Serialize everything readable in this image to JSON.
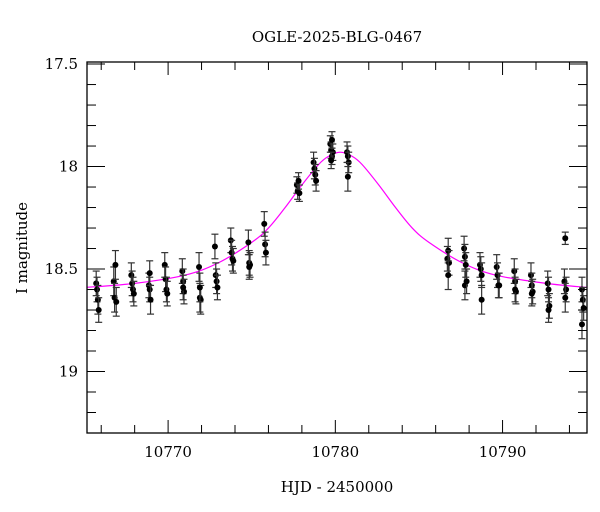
{
  "chart_data": {
    "type": "scatter",
    "title": "OGLE-2025-BLG-0467",
    "xlabel": "HJD - 2450000",
    "ylabel": "I magnitude",
    "xlim": [
      10765.15,
      10795.05
    ],
    "ylim": [
      19.3,
      17.49
    ],
    "y_inverted": true,
    "grid": false,
    "legend": "none",
    "x_major_ticks": [
      10770,
      10780,
      10790
    ],
    "x_tick_labels": [
      "10770",
      "10780",
      "10790"
    ],
    "x_minor_step": 2,
    "y_major_ticks": [
      17.5,
      18,
      18.5,
      19
    ],
    "y_tick_labels": [
      "17.5",
      "18",
      "18.5",
      "19"
    ],
    "y_minor_step": 0.1,
    "colors": {
      "points": "#000000",
      "errorbars": "#333333",
      "model": "#ff00ff",
      "axes": "#000000"
    },
    "series": [
      {
        "kind": "data-with-errors",
        "points": [
          [
            10765.7,
            18.57,
            0.06
          ],
          [
            10765.75,
            18.6,
            0.06
          ],
          [
            10765.8,
            18.65,
            0.07
          ],
          [
            10765.85,
            18.7,
            0.06
          ],
          [
            10766.75,
            18.56,
            0.07
          ],
          [
            10766.8,
            18.64,
            0.07
          ],
          [
            10766.85,
            18.48,
            0.07
          ],
          [
            10766.9,
            18.66,
            0.07
          ],
          [
            10767.8,
            18.53,
            0.06
          ],
          [
            10767.85,
            18.57,
            0.06
          ],
          [
            10767.9,
            18.6,
            0.06
          ],
          [
            10767.95,
            18.62,
            0.06
          ],
          [
            10768.85,
            18.58,
            0.06
          ],
          [
            10768.9,
            18.6,
            0.06
          ],
          [
            10768.95,
            18.65,
            0.07
          ],
          [
            10768.9,
            18.52,
            0.06
          ],
          [
            10769.8,
            18.48,
            0.06
          ],
          [
            10769.85,
            18.55,
            0.06
          ],
          [
            10769.9,
            18.6,
            0.06
          ],
          [
            10769.95,
            18.62,
            0.06
          ],
          [
            10770.85,
            18.51,
            0.06
          ],
          [
            10770.9,
            18.56,
            0.06
          ],
          [
            10770.95,
            18.61,
            0.06
          ],
          [
            10770.9,
            18.59,
            0.06
          ],
          [
            10771.85,
            18.49,
            0.07
          ],
          [
            10771.9,
            18.64,
            0.07
          ],
          [
            10771.95,
            18.65,
            0.07
          ],
          [
            10771.9,
            18.59,
            0.07
          ],
          [
            10772.8,
            18.39,
            0.06
          ],
          [
            10772.85,
            18.53,
            0.06
          ],
          [
            10772.9,
            18.56,
            0.06
          ],
          [
            10772.95,
            18.59,
            0.06
          ],
          [
            10773.75,
            18.36,
            0.06
          ],
          [
            10773.8,
            18.42,
            0.06
          ],
          [
            10773.85,
            18.45,
            0.06
          ],
          [
            10773.9,
            18.46,
            0.06
          ],
          [
            10774.8,
            18.37,
            0.06
          ],
          [
            10774.85,
            18.47,
            0.06
          ],
          [
            10774.9,
            18.48,
            0.06
          ],
          [
            10774.85,
            18.49,
            0.06
          ],
          [
            10775.75,
            18.28,
            0.06
          ],
          [
            10775.8,
            18.38,
            0.06
          ],
          [
            10775.85,
            18.42,
            0.06
          ],
          [
            10777.7,
            18.09,
            0.04
          ],
          [
            10777.75,
            18.12,
            0.04
          ],
          [
            10777.8,
            18.07,
            0.04
          ],
          [
            10777.85,
            18.13,
            0.04
          ],
          [
            10778.7,
            17.98,
            0.05
          ],
          [
            10778.75,
            18.01,
            0.05
          ],
          [
            10778.8,
            18.04,
            0.05
          ],
          [
            10778.85,
            18.07,
            0.05
          ],
          [
            10779.7,
            17.89,
            0.04
          ],
          [
            10779.75,
            17.92,
            0.04
          ],
          [
            10779.8,
            17.95,
            0.04
          ],
          [
            10779.85,
            17.93,
            0.04
          ],
          [
            10779.75,
            17.97,
            0.04
          ],
          [
            10779.8,
            17.87,
            0.04
          ],
          [
            10780.7,
            17.93,
            0.05
          ],
          [
            10780.75,
            17.95,
            0.05
          ],
          [
            10780.8,
            17.98,
            0.05
          ],
          [
            10780.75,
            18.05,
            0.07
          ],
          [
            10786.7,
            18.45,
            0.06
          ],
          [
            10786.75,
            18.41,
            0.06
          ],
          [
            10786.8,
            18.47,
            0.06
          ],
          [
            10786.75,
            18.53,
            0.07
          ],
          [
            10787.7,
            18.4,
            0.06
          ],
          [
            10787.75,
            18.44,
            0.06
          ],
          [
            10787.8,
            18.48,
            0.06
          ],
          [
            10787.75,
            18.58,
            0.07
          ],
          [
            10787.85,
            18.56,
            0.06
          ],
          [
            10788.65,
            18.48,
            0.06
          ],
          [
            10788.7,
            18.5,
            0.06
          ],
          [
            10788.75,
            18.53,
            0.06
          ],
          [
            10788.75,
            18.65,
            0.07
          ],
          [
            10789.65,
            18.49,
            0.06
          ],
          [
            10789.7,
            18.53,
            0.06
          ],
          [
            10789.75,
            18.58,
            0.06
          ],
          [
            10789.8,
            18.58,
            0.06
          ],
          [
            10790.7,
            18.51,
            0.06
          ],
          [
            10790.75,
            18.56,
            0.06
          ],
          [
            10790.8,
            18.61,
            0.06
          ],
          [
            10790.75,
            18.6,
            0.06
          ],
          [
            10791.7,
            18.53,
            0.06
          ],
          [
            10791.75,
            18.58,
            0.06
          ],
          [
            10791.8,
            18.61,
            0.06
          ],
          [
            10791.75,
            18.62,
            0.06
          ],
          [
            10792.7,
            18.57,
            0.06
          ],
          [
            10792.75,
            18.6,
            0.06
          ],
          [
            10792.8,
            18.68,
            0.06
          ],
          [
            10792.75,
            18.7,
            0.06
          ],
          [
            10793.75,
            18.35,
            0.03
          ],
          [
            10793.7,
            18.56,
            0.06
          ],
          [
            10793.8,
            18.6,
            0.06
          ],
          [
            10793.75,
            18.64,
            0.07
          ],
          [
            10794.75,
            18.6,
            0.06
          ],
          [
            10794.8,
            18.65,
            0.06
          ],
          [
            10794.85,
            18.69,
            0.06
          ],
          [
            10794.75,
            18.77,
            0.07
          ]
        ]
      },
      {
        "kind": "model",
        "points": [
          [
            10765,
            18.59
          ],
          [
            10768,
            18.57
          ],
          [
            10771,
            18.53
          ],
          [
            10773,
            18.47
          ],
          [
            10775,
            18.37
          ],
          [
            10776,
            18.3
          ],
          [
            10777,
            18.2
          ],
          [
            10778,
            18.09
          ],
          [
            10779,
            17.99
          ],
          [
            10779.6,
            17.95
          ],
          [
            10780.3,
            17.93
          ],
          [
            10781,
            17.95
          ],
          [
            10781.6,
            17.99
          ],
          [
            10782.6,
            18.09
          ],
          [
            10783.6,
            18.2
          ],
          [
            10784.6,
            18.3
          ],
          [
            10785.6,
            18.37
          ],
          [
            10787.6,
            18.47
          ],
          [
            10789.6,
            18.53
          ],
          [
            10792.6,
            18.57
          ],
          [
            10795.1,
            18.59
          ]
        ]
      }
    ]
  }
}
